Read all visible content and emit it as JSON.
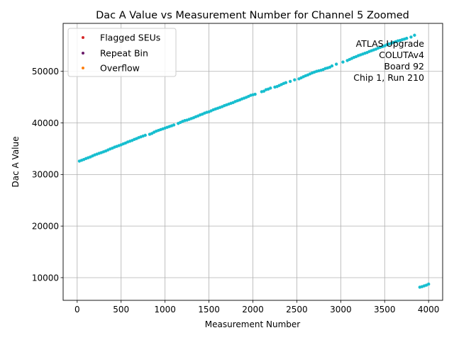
{
  "chart_data": {
    "type": "scatter",
    "title": "Dac A Value vs Measurement Number for Channel 5 Zoomed",
    "xlabel": "Measurement Number",
    "ylabel": "Dac A Value",
    "xlim": [
      -160,
      4160
    ],
    "ylim": [
      5600,
      59300
    ],
    "xticks": [
      0,
      500,
      1000,
      1500,
      2000,
      2500,
      3000,
      3500,
      4000
    ],
    "yticks": [
      10000,
      20000,
      30000,
      40000,
      50000
    ],
    "grid": true,
    "legend": {
      "position": "top-left",
      "entries": [
        {
          "label": "Flagged SEUs",
          "color": "#d62728"
        },
        {
          "label": "Repeat Bin",
          "color": "#6a1b6a"
        },
        {
          "label": "Overflow",
          "color": "#ff7f0e"
        }
      ]
    },
    "annotation": [
      "ATLAS Upgrade",
      "COLUTAv4",
      "Board 92",
      "Chip 1, Run 210"
    ],
    "series": [
      {
        "color": "#17becf",
        "points": [
          [
            25,
            32600
          ],
          [
            50,
            32750
          ],
          [
            75,
            32900
          ],
          [
            100,
            33100
          ],
          [
            125,
            33250
          ],
          [
            150,
            33400
          ],
          [
            175,
            33600
          ],
          [
            200,
            33800
          ],
          [
            225,
            33950
          ],
          [
            250,
            34100
          ],
          [
            275,
            34250
          ],
          [
            300,
            34400
          ],
          [
            325,
            34550
          ],
          [
            350,
            34750
          ],
          [
            375,
            34950
          ],
          [
            400,
            35100
          ],
          [
            425,
            35300
          ],
          [
            450,
            35450
          ],
          [
            475,
            35600
          ],
          [
            500,
            35750
          ],
          [
            525,
            35950
          ],
          [
            550,
            36100
          ],
          [
            575,
            36300
          ],
          [
            600,
            36450
          ],
          [
            625,
            36600
          ],
          [
            650,
            36800
          ],
          [
            675,
            36950
          ],
          [
            700,
            37150
          ],
          [
            725,
            37300
          ],
          [
            750,
            37450
          ],
          [
            775,
            37600
          ],
          [
            825,
            37800
          ],
          [
            850,
            37950
          ],
          [
            875,
            38200
          ],
          [
            900,
            38400
          ],
          [
            925,
            38550
          ],
          [
            950,
            38700
          ],
          [
            975,
            38850
          ],
          [
            1000,
            39000
          ],
          [
            1025,
            39150
          ],
          [
            1050,
            39300
          ],
          [
            1075,
            39450
          ],
          [
            1100,
            39600
          ],
          [
            1150,
            39900
          ],
          [
            1175,
            40100
          ],
          [
            1200,
            40300
          ],
          [
            1225,
            40450
          ],
          [
            1250,
            40550
          ],
          [
            1275,
            40700
          ],
          [
            1300,
            40850
          ],
          [
            1325,
            41000
          ],
          [
            1350,
            41200
          ],
          [
            1375,
            41350
          ],
          [
            1400,
            41550
          ],
          [
            1425,
            41700
          ],
          [
            1450,
            41900
          ],
          [
            1475,
            42050
          ],
          [
            1500,
            42150
          ],
          [
            1525,
            42350
          ],
          [
            1550,
            42550
          ],
          [
            1575,
            42700
          ],
          [
            1600,
            42850
          ],
          [
            1625,
            43000
          ],
          [
            1650,
            43150
          ],
          [
            1675,
            43350
          ],
          [
            1700,
            43500
          ],
          [
            1725,
            43650
          ],
          [
            1750,
            43800
          ],
          [
            1775,
            43950
          ],
          [
            1800,
            44150
          ],
          [
            1825,
            44300
          ],
          [
            1850,
            44450
          ],
          [
            1875,
            44650
          ],
          [
            1900,
            44800
          ],
          [
            1925,
            44950
          ],
          [
            1950,
            45150
          ],
          [
            1975,
            45350
          ],
          [
            2000,
            45450
          ],
          [
            2025,
            45550
          ],
          [
            2100,
            46050
          ],
          [
            2125,
            46150
          ],
          [
            2150,
            46450
          ],
          [
            2175,
            46550
          ],
          [
            2200,
            46750
          ],
          [
            2250,
            46950
          ],
          [
            2275,
            47050
          ],
          [
            2300,
            47250
          ],
          [
            2325,
            47450
          ],
          [
            2350,
            47650
          ],
          [
            2375,
            47800
          ],
          [
            2425,
            48050
          ],
          [
            2475,
            48350
          ],
          [
            2525,
            48550
          ],
          [
            2550,
            48750
          ],
          [
            2575,
            48950
          ],
          [
            2600,
            49150
          ],
          [
            2625,
            49300
          ],
          [
            2650,
            49500
          ],
          [
            2675,
            49700
          ],
          [
            2700,
            49850
          ],
          [
            2725,
            50000
          ],
          [
            2750,
            50100
          ],
          [
            2775,
            50200
          ],
          [
            2800,
            50350
          ],
          [
            2825,
            50550
          ],
          [
            2850,
            50650
          ],
          [
            2875,
            50800
          ],
          [
            2900,
            51050
          ],
          [
            2950,
            51400
          ],
          [
            3025,
            51800
          ],
          [
            3075,
            52100
          ],
          [
            3100,
            52300
          ],
          [
            3125,
            52500
          ],
          [
            3150,
            52700
          ],
          [
            3175,
            52850
          ],
          [
            3200,
            53050
          ],
          [
            3225,
            53200
          ],
          [
            3250,
            53350
          ],
          [
            3275,
            53500
          ],
          [
            3300,
            53650
          ],
          [
            3325,
            53850
          ],
          [
            3350,
            54000
          ],
          [
            3375,
            54150
          ],
          [
            3400,
            54300
          ],
          [
            3425,
            54500
          ],
          [
            3450,
            54650
          ],
          [
            3475,
            54800
          ],
          [
            3500,
            54950
          ],
          [
            3525,
            55150
          ],
          [
            3550,
            55300
          ],
          [
            3575,
            55450
          ],
          [
            3600,
            55600
          ],
          [
            3625,
            55750
          ],
          [
            3650,
            55900
          ],
          [
            3675,
            56000
          ],
          [
            3700,
            56150
          ],
          [
            3725,
            56250
          ],
          [
            3750,
            56400
          ],
          [
            3800,
            56650
          ],
          [
            3840,
            57000
          ],
          [
            3900,
            8150
          ],
          [
            3925,
            8250
          ],
          [
            3950,
            8400
          ],
          [
            3975,
            8550
          ],
          [
            4000,
            8750
          ]
        ]
      }
    ]
  }
}
